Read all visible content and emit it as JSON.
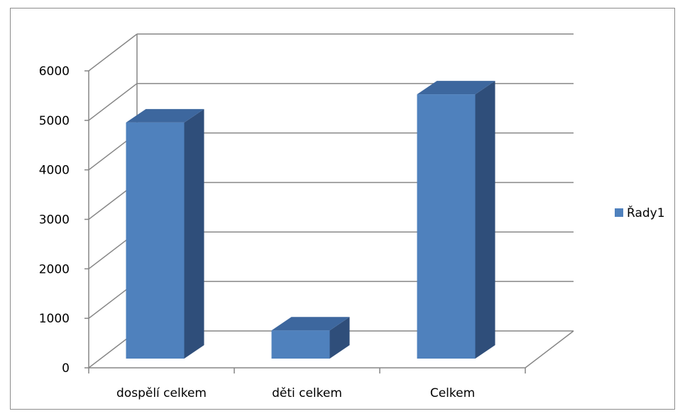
{
  "chart_data": {
    "type": "bar",
    "categories": [
      "dospělí celkem",
      "děti celkem",
      "Celkem"
    ],
    "series": [
      {
        "name": "Řady1",
        "values": [
          4770,
          570,
          5340
        ],
        "color": "#4f81bd",
        "color_side": "#2f4e7a",
        "color_top": "#3d679e"
      }
    ],
    "ylim": [
      0,
      6000
    ],
    "y_ticks": [
      "0",
      "1000",
      "2000",
      "3000",
      "4000",
      "5000",
      "6000"
    ],
    "grid": true,
    "legend_position": "right",
    "style": "3d-column"
  }
}
